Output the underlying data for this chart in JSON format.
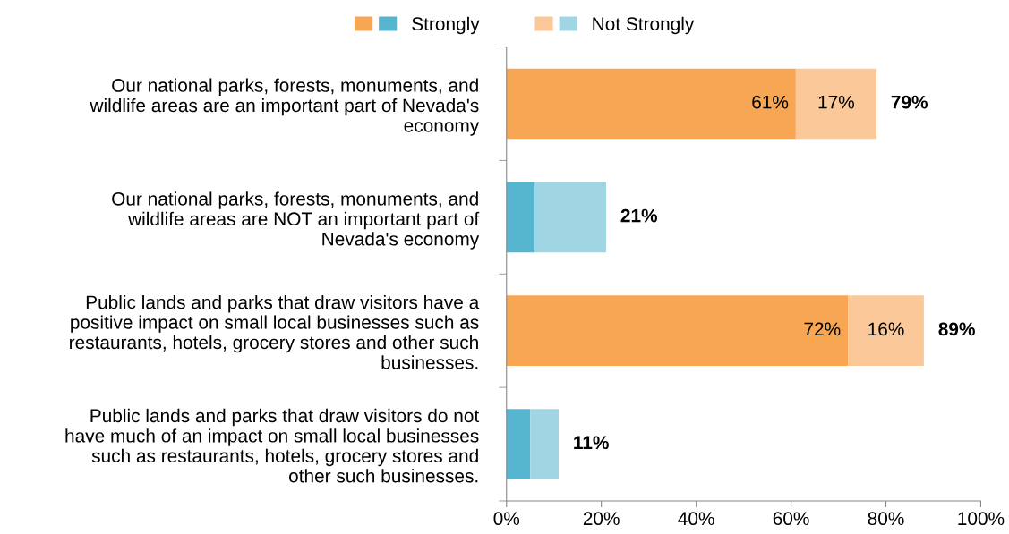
{
  "chart_data": {
    "type": "bar",
    "orientation": "horizontal",
    "stacked": true,
    "categories": [
      "Our national parks, forests, monuments, and\nwildlife areas are an important part of Nevada's\neconomy",
      "Our national parks, forests, monuments, and\nwildlife areas are NOT an important part of\nNevada's economy",
      "Public lands and parks that draw visitors have a\npositive impact on small local businesses such as\nrestaurants, hotels, grocery stores and other such\nbusinesses.",
      "Public lands and parks that draw visitors do not\nhave much of an impact on small local businesses\nsuch as restaurants, hotels, grocery stores and\nother such businesses."
    ],
    "series": [
      {
        "name": "Strongly",
        "colors": [
          "#f7a654",
          "#56b6cf",
          "#f7a654",
          "#56b6cf"
        ],
        "values": [
          61,
          6,
          72,
          5
        ],
        "value_labels": [
          "61%",
          null,
          "72%",
          null
        ]
      },
      {
        "name": "Not Strongly",
        "colors": [
          "#fbc89a",
          "#a0d6e3",
          "#fbc89a",
          "#a0d6e3"
        ],
        "values": [
          17,
          15,
          16,
          6
        ],
        "value_labels": [
          "17%",
          null,
          "16%",
          null
        ]
      }
    ],
    "totals": [
      "79%",
      "21%",
      "89%",
      "11%"
    ],
    "xlim": [
      0,
      100
    ],
    "xticks": [
      {
        "value": 0,
        "label": "0%"
      },
      {
        "value": 20,
        "label": "20%"
      },
      {
        "value": 40,
        "label": "40%"
      },
      {
        "value": 60,
        "label": "60%"
      },
      {
        "value": 80,
        "label": "80%"
      },
      {
        "value": 100,
        "label": "100%"
      }
    ],
    "legend": "top",
    "grid": false
  }
}
